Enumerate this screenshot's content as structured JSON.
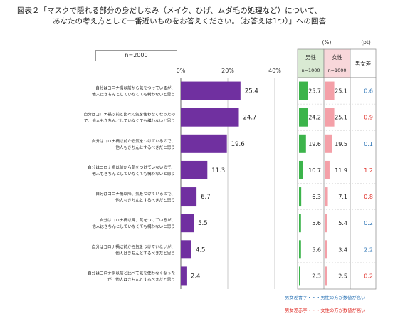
{
  "header": {
    "title_line1": "図表２「マスクで隠れる部分の身だしなみ（メイク、ひげ、ムダ毛の処理など）について、",
    "title_line2": "あなたの考え方として一番近いものをお答えください。（お答えは1つ）」への回答"
  },
  "sample_label": "n=2000",
  "unit_percent": "(%)",
  "unit_pt": "(pt)",
  "colors": {
    "bar": "#7030a0",
    "male": "#3cb44b",
    "female": "#f4a0a8",
    "diff_blue": "#2e75b6",
    "diff_red": "#e0302a"
  },
  "chart_data": {
    "type": "bar",
    "orientation": "horizontal",
    "x_ticks": [
      "0%",
      "20%",
      "40%"
    ],
    "xlim": [
      0,
      40
    ],
    "categories": [
      [
        "自分はコロナ禍以前から気をつけているが、",
        "他人はきちんとしていなくても構わないと思う"
      ],
      [
        "自分はコロナ禍以前と比べて気を使わなくなったの",
        "で、他人もきちんとしていなくても構わないと思う"
      ],
      [
        "自分はコロナ禍以前から気をつけているので、",
        "他人もきちんとするべきだと思う"
      ],
      [
        "自分はコロナ禍以前から気をつけていないので、",
        "他人もきちんとしていなくても構わないと思う"
      ],
      [
        "自分はコロナ禍以降、気をつけているので、",
        "他人もきちんとするべきだと思う"
      ],
      [
        "自分はコロナ禍以降、気をつけているが、",
        "他人はきちんとしていなくても構わないと思う"
      ],
      [
        "自分はコロナ禍以前から気をつけていないが、",
        "他人はきちんとするべきだと思う"
      ],
      [
        "自分はコロナ禍以前と比べて気を使わなくなった",
        "が、他人はきちんとするべきだと思う"
      ]
    ],
    "values": [
      25.4,
      24.7,
      19.6,
      11.3,
      6.7,
      5.5,
      4.5,
      2.4
    ],
    "table": {
      "male_header": "男性",
      "male_n": "n=1000",
      "female_header": "女性",
      "female_n": "n=1000",
      "diff_header": "男女差",
      "male": [
        25.7,
        24.2,
        19.6,
        10.7,
        6.3,
        5.6,
        5.6,
        2.3
      ],
      "female": [
        25.1,
        25.1,
        19.5,
        11.9,
        7.1,
        5.4,
        3.4,
        2.5
      ],
      "diff": [
        0.6,
        0.9,
        0.1,
        1.2,
        0.8,
        0.2,
        2.2,
        0.2
      ],
      "diff_color": [
        "blue",
        "red",
        "blue",
        "red",
        "red",
        "blue",
        "blue",
        "red"
      ]
    }
  },
  "legend": {
    "blue": "男女差青字・・・男性の方が数値が高い",
    "red": "男女差赤字・・・女性の方が数値が高い"
  }
}
